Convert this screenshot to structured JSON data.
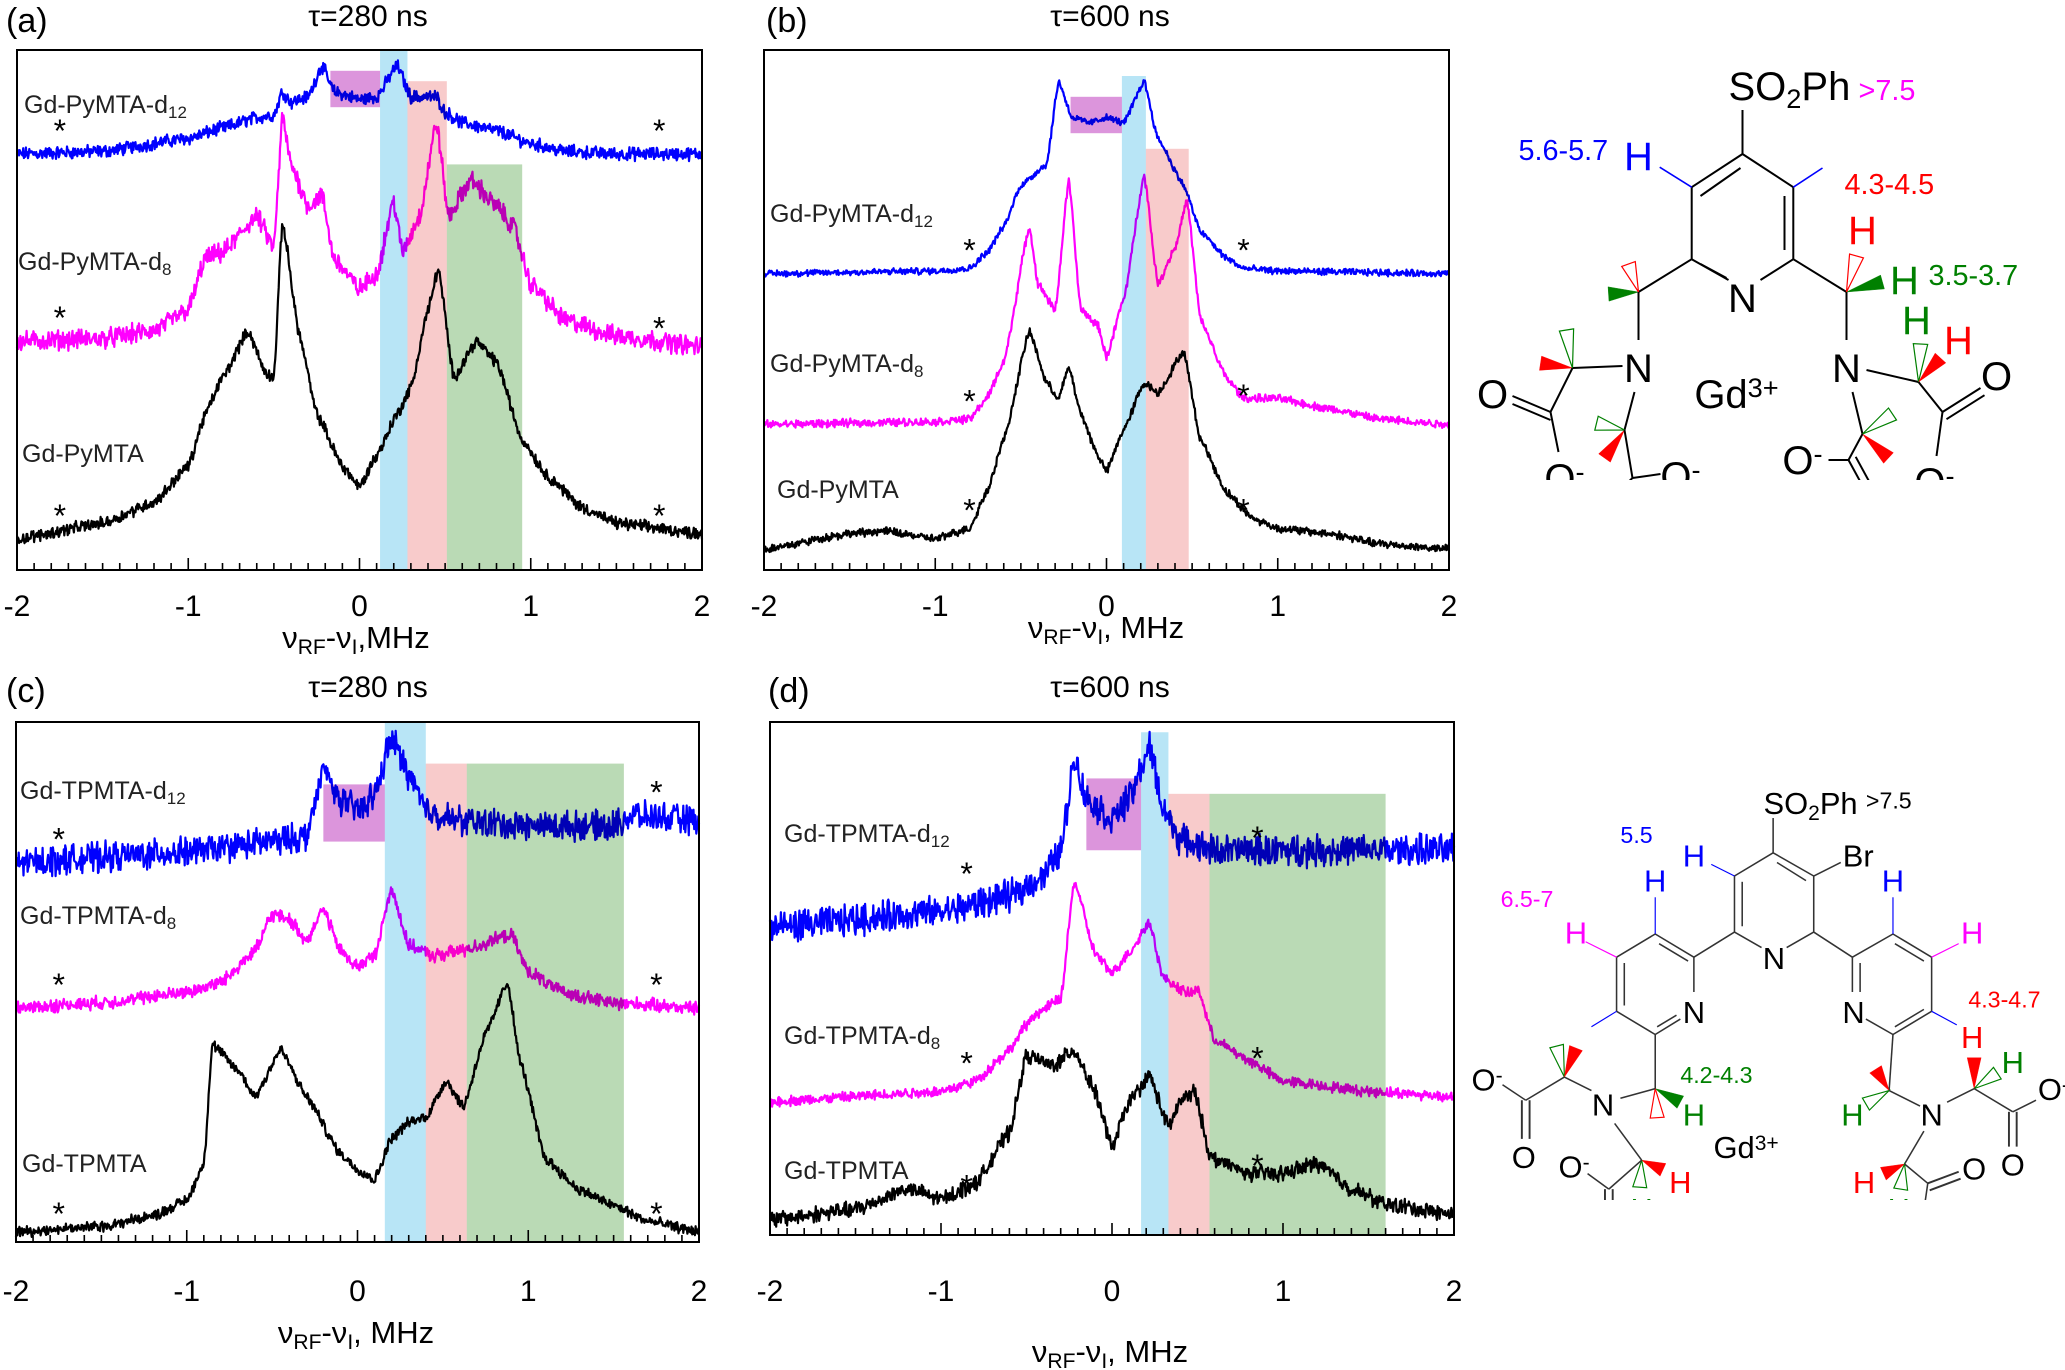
{
  "chart_data": [
    {
      "type": "line",
      "panel_label": "(a)",
      "title": "τ=280 ns",
      "xlabel_parts": [
        "ν",
        "RF",
        "-ν",
        "I",
        ",MHz"
      ],
      "xlim": [
        -2,
        2
      ],
      "xticks": [
        "-2",
        "-1",
        "0",
        "1",
        "2"
      ],
      "ylim": [
        0,
        100
      ],
      "yaxis": "arbitrary, stacked, no tick labels",
      "grid": false,
      "series": [
        {
          "name": "Gd-PyMTA-d",
          "name_sub": "12",
          "color": "#0000ff",
          "x": [
            -2,
            -1.5,
            -1,
            -0.8,
            -0.6,
            -0.5,
            -0.45,
            -0.4,
            -0.3,
            -0.22,
            -0.15,
            0,
            0.1,
            0.22,
            0.3,
            0.45,
            0.5,
            0.6,
            0.8,
            1.0,
            1.2,
            1.5,
            2
          ],
          "y": [
            80,
            80.5,
            83,
            85,
            87,
            87.5,
            92,
            90,
            91,
            97,
            92,
            90.5,
            91,
            97,
            91,
            91,
            88,
            86,
            84.5,
            82,
            80.5,
            80,
            80
          ]
        },
        {
          "name": "Gd-PyMTA-d",
          "name_sub": "8",
          "color": "#ff00ff",
          "x": [
            -2,
            -1.5,
            -1.2,
            -1,
            -0.9,
            -0.8,
            -0.6,
            -0.5,
            -0.45,
            -0.4,
            -0.3,
            -0.22,
            -0.15,
            0,
            0.1,
            0.2,
            0.25,
            0.35,
            0.45,
            0.52,
            0.65,
            0.8,
            0.9,
            1.0,
            1.2,
            1.5,
            2
          ],
          "y": [
            44,
            44.5,
            46,
            50,
            60,
            61,
            68,
            62,
            87,
            78,
            70,
            72,
            60,
            54,
            57,
            71,
            61,
            68,
            86,
            68,
            75,
            70,
            66,
            55,
            48,
            45,
            43
          ]
        },
        {
          "name": "Gd-PyMTA",
          "name_sub": "",
          "color": "#000000",
          "x": [
            -2,
            -1.5,
            -1.2,
            -1,
            -0.9,
            -0.8,
            -0.65,
            -0.55,
            -0.5,
            -0.45,
            -0.35,
            -0.25,
            -0.1,
            0,
            0.1,
            0.22,
            0.3,
            0.4,
            0.46,
            0.55,
            0.68,
            0.8,
            0.95,
            1.1,
            1.3,
            1.5,
            2
          ],
          "y": [
            6,
            9,
            13,
            20,
            30,
            37,
            46,
            38,
            37,
            67,
            45,
            30,
            20,
            16,
            22,
            30,
            35,
            50,
            58,
            37,
            44,
            40,
            25,
            18,
            12,
            9,
            7
          ]
        }
      ],
      "shaded_regions": [
        {
          "x": [
            -0.17,
            0.12
          ],
          "y": [
            89,
            96
          ],
          "color": "#d98ad9"
        },
        {
          "x": [
            0.12,
            0.28
          ],
          "y": [
            0,
            100
          ],
          "color": "#b0e2f5"
        },
        {
          "x": [
            0.28,
            0.51
          ],
          "y": [
            0,
            94
          ],
          "color": "#f8c6c6"
        },
        {
          "x": [
            0.51,
            0.95
          ],
          "y": [
            0,
            78
          ],
          "color": "#b3d6ad"
        }
      ],
      "annotations": [
        {
          "text": "*",
          "x": -1.75,
          "y": 85
        },
        {
          "text": "*",
          "x": 1.75,
          "y": 85
        },
        {
          "text": "*",
          "x": -1.75,
          "y": 49
        },
        {
          "text": "*",
          "x": 1.75,
          "y": 47
        },
        {
          "text": "*",
          "x": -1.75,
          "y": 11
        },
        {
          "text": "*",
          "x": 1.75,
          "y": 11
        }
      ]
    },
    {
      "type": "line",
      "panel_label": "(b)",
      "title": "τ=600 ns",
      "xlabel_parts": [
        "ν",
        "RF",
        "-ν",
        "I",
        ", MHz"
      ],
      "xlim": [
        -2,
        2
      ],
      "xticks": [
        "-2",
        "-1",
        "0",
        "1",
        "2"
      ],
      "ylim": [
        0,
        100
      ],
      "yaxis": "arbitrary, stacked, no tick labels",
      "grid": false,
      "series": [
        {
          "name": "Gd-PyMTA-d",
          "name_sub": "12",
          "color": "#0000ff",
          "x": [
            -2,
            -1,
            -0.8,
            -0.7,
            -0.6,
            -0.5,
            -0.35,
            -0.28,
            -0.2,
            -0.1,
            0,
            0.1,
            0.22,
            0.3,
            0.45,
            0.55,
            0.7,
            0.8,
            1.0,
            2
          ],
          "y": [
            57,
            57.5,
            58,
            61,
            66,
            74,
            78,
            94,
            87,
            86,
            87,
            86,
            94,
            83,
            74,
            65,
            60,
            58,
            57.5,
            57
          ]
        },
        {
          "name": "Gd-PyMTA-d",
          "name_sub": "8",
          "color": "#ff00ff",
          "x": [
            -2,
            -1,
            -0.8,
            -0.7,
            -0.6,
            -0.45,
            -0.4,
            -0.3,
            -0.22,
            -0.15,
            -0.05,
            0,
            0.1,
            0.22,
            0.3,
            0.4,
            0.47,
            0.55,
            0.7,
            0.8,
            1.0,
            1.3,
            1.6,
            2
          ],
          "y": [
            28,
            28.5,
            29,
            33,
            40,
            66,
            55,
            50,
            75,
            50,
            47,
            41,
            52,
            76,
            55,
            62,
            71,
            48,
            37,
            33,
            33,
            31,
            29,
            28
          ]
        },
        {
          "name": "Gd-PyMTA",
          "name_sub": "",
          "color": "#000000",
          "x": [
            -2,
            -1.5,
            -1.3,
            -1,
            -0.8,
            -0.7,
            -0.6,
            -0.45,
            -0.35,
            -0.28,
            -0.22,
            -0.15,
            -0.05,
            0,
            0.1,
            0.22,
            0.3,
            0.45,
            0.55,
            0.7,
            0.85,
            1.0,
            1.3,
            1.6,
            2
          ],
          "y": [
            4,
            7,
            7.5,
            6,
            8,
            15,
            25,
            46,
            36,
            33,
            39,
            30,
            22,
            19,
            27,
            36,
            34,
            42,
            25,
            15,
            10,
            8,
            7,
            5,
            4
          ]
        }
      ],
      "shaded_regions": [
        {
          "x": [
            -0.21,
            0.09
          ],
          "y": [
            84,
            91
          ],
          "color": "#d98ad9"
        },
        {
          "x": [
            0.09,
            0.23
          ],
          "y": [
            0,
            95
          ],
          "color": "#b0e2f5"
        },
        {
          "x": [
            0.23,
            0.48
          ],
          "y": [
            0,
            81
          ],
          "color": "#f8c6c6"
        }
      ],
      "annotations": [
        {
          "text": "*",
          "x": -0.8,
          "y": 62
        },
        {
          "text": "*",
          "x": 0.8,
          "y": 62
        },
        {
          "text": "*",
          "x": -0.8,
          "y": 33
        },
        {
          "text": "*",
          "x": 0.8,
          "y": 34
        },
        {
          "text": "*",
          "x": -0.8,
          "y": 12
        },
        {
          "text": "*",
          "x": 0.8,
          "y": 12
        }
      ]
    },
    {
      "type": "line",
      "panel_label": "(c)",
      "title": "τ=280 ns",
      "xlabel_parts": [
        "ν",
        "RF",
        "-ν",
        "I",
        ", MHz"
      ],
      "xlim": [
        -2,
        2
      ],
      "xticks": [
        "-2",
        "-1",
        "0",
        "1",
        "2"
      ],
      "ylim": [
        0,
        100
      ],
      "yaxis": "arbitrary, stacked, no tick labels",
      "grid": false,
      "series": [
        {
          "name": "Gd-TPMTA-d",
          "name_sub": "12",
          "color": "#0000ff",
          "x": [
            -2,
            -1.5,
            -1,
            -0.5,
            -0.3,
            -0.25,
            -0.2,
            -0.1,
            0,
            0.1,
            0.2,
            0.3,
            0.4,
            0.6,
            1,
            1.5,
            1.6,
            2
          ],
          "y": [
            73,
            74,
            75,
            77,
            78,
            84,
            91,
            85,
            83,
            86,
            97,
            90,
            83,
            81,
            80,
            80,
            82,
            81
          ]
        },
        {
          "name": "Gd-TPMTA-d",
          "name_sub": "8",
          "color": "#ff00ff",
          "x": [
            -2,
            -1.5,
            -1,
            -0.8,
            -0.6,
            -0.5,
            -0.4,
            -0.3,
            -0.2,
            -0.1,
            0,
            0.1,
            0.2,
            0.3,
            0.45,
            0.6,
            0.9,
            1.0,
            1.2,
            1.5,
            2
          ],
          "y": [
            45,
            46,
            48,
            50,
            56,
            63,
            62,
            58,
            64,
            56,
            53,
            55,
            68,
            57,
            55,
            56,
            59,
            52,
            48,
            46,
            45
          ]
        },
        {
          "name": "Gd-TPMTA",
          "name_sub": "",
          "color": "#000000",
          "x": [
            -2,
            -1.5,
            -1.2,
            -1,
            -0.9,
            -0.85,
            -0.7,
            -0.6,
            -0.45,
            -0.3,
            -0.1,
            0,
            0.1,
            0.2,
            0.3,
            0.4,
            0.52,
            0.62,
            0.75,
            0.88,
            0.95,
            1.1,
            1.3,
            1.5,
            1.7,
            2
          ],
          "y": [
            2,
            3,
            5,
            8,
            15,
            38,
            33,
            28,
            37,
            28,
            17,
            14,
            12,
            20,
            23,
            24,
            31,
            26,
            40,
            50,
            35,
            16,
            10,
            7,
            4,
            2
          ]
        }
      ],
      "shaded_regions": [
        {
          "x": [
            -0.2,
            0.16
          ],
          "y": [
            77,
            88
          ],
          "color": "#d98ad9"
        },
        {
          "x": [
            0.16,
            0.4
          ],
          "y": [
            0,
            100
          ],
          "color": "#b0e2f5"
        },
        {
          "x": [
            0.4,
            0.64
          ],
          "y": [
            0,
            92
          ],
          "color": "#f8c6c6"
        },
        {
          "x": [
            0.64,
            1.56
          ],
          "y": [
            0,
            92
          ],
          "color": "#b3d6ad"
        }
      ],
      "annotations": [
        {
          "text": "*",
          "x": -1.75,
          "y": 78
        },
        {
          "text": "*",
          "x": 1.75,
          "y": 87
        },
        {
          "text": "*",
          "x": -1.75,
          "y": 50
        },
        {
          "text": "*",
          "x": 1.75,
          "y": 50
        },
        {
          "text": "*",
          "x": -1.75,
          "y": 6
        },
        {
          "text": "*",
          "x": 1.75,
          "y": 6
        }
      ]
    },
    {
      "type": "line",
      "panel_label": "(d)",
      "title": "τ=600 ns",
      "xlabel_parts": [
        "ν",
        "RF",
        "-ν",
        "I",
        ", MHz"
      ],
      "xlim": [
        -2,
        2
      ],
      "xticks": [
        "-2",
        "-1",
        "0",
        "1",
        "2"
      ],
      "ylim": [
        0,
        100
      ],
      "yaxis": "arbitrary, stacked, no tick labels",
      "grid": false,
      "series": [
        {
          "name": "Gd-TPMTA-d",
          "name_sub": "12",
          "color": "#0000ff",
          "x": [
            -2,
            -1,
            -0.6,
            -0.4,
            -0.3,
            -0.22,
            -0.15,
            0,
            0.1,
            0.22,
            0.3,
            0.4,
            0.6,
            1,
            1.5,
            2
          ],
          "y": [
            60,
            63,
            66,
            70,
            75,
            93,
            85,
            81,
            85,
            95,
            83,
            77,
            75,
            75,
            75,
            75
          ]
        },
        {
          "name": "Gd-TPMTA-d",
          "name_sub": "8",
          "color": "#ff00ff",
          "x": [
            -2,
            -1,
            -0.8,
            -0.6,
            -0.5,
            -0.45,
            -0.3,
            -0.22,
            -0.1,
            0,
            0.1,
            0.22,
            0.3,
            0.45,
            0.5,
            0.6,
            0.8,
            1.0,
            1.5,
            2
          ],
          "y": [
            26,
            28,
            30,
            36,
            41,
            43,
            46,
            69,
            55,
            51,
            55,
            61,
            50,
            47,
            48,
            38,
            34,
            30,
            28,
            27
          ]
        },
        {
          "name": "Gd-TPMTA",
          "name_sub": "",
          "color": "#000000",
          "x": [
            -2,
            -1.5,
            -1.2,
            -1,
            -0.8,
            -0.6,
            -0.5,
            -0.35,
            -0.22,
            -0.1,
            0,
            0.1,
            0.22,
            0.33,
            0.4,
            0.48,
            0.58,
            0.8,
            1.0,
            1.2,
            1.4,
            1.6,
            2
          ],
          "y": [
            3,
            5,
            9,
            7,
            10,
            20,
            35,
            33,
            36,
            28,
            17,
            26,
            31,
            21,
            26,
            28,
            15,
            12,
            12,
            14,
            9,
            6,
            4
          ]
        }
      ],
      "shaded_regions": [
        {
          "x": [
            -0.15,
            0.17
          ],
          "y": [
            75,
            89
          ],
          "color": "#d98ad9"
        },
        {
          "x": [
            0.17,
            0.33
          ],
          "y": [
            0,
            98
          ],
          "color": "#b0e2f5"
        },
        {
          "x": [
            0.33,
            0.57
          ],
          "y": [
            0,
            86
          ],
          "color": "#f8c6c6"
        },
        {
          "x": [
            0.57,
            1.6
          ],
          "y": [
            0,
            86
          ],
          "color": "#b3d6ad"
        }
      ],
      "annotations": [
        {
          "text": "*",
          "x": -0.85,
          "y": 71
        },
        {
          "text": "*",
          "x": 0.85,
          "y": 78
        },
        {
          "text": "*",
          "x": -0.85,
          "y": 34
        },
        {
          "text": "*",
          "x": 0.85,
          "y": 35
        },
        {
          "text": "*",
          "x": -0.85,
          "y": 10
        },
        {
          "text": "*",
          "x": 0.85,
          "y": 14
        }
      ]
    }
  ],
  "structures": [
    {
      "substituent": [
        "SO",
        "2",
        "Ph"
      ],
      "shift_aryl": ">7.5",
      "shift_aryl_color": "#ff00ff",
      "shift_blue": "5.6-5.7",
      "shift_red": "4.3-4.5",
      "shift_green": "3.5-3.7",
      "metal": [
        "Gd",
        "3+"
      ]
    },
    {
      "substituent": [
        "SO",
        "2",
        "Ph"
      ],
      "shift_aryl": ">7.5",
      "shift_aryl_color": "#000000",
      "shift_blue": "5.5",
      "shift_magenta": "6.5-7",
      "shift_red": "4.3-4.7",
      "shift_green": "4.2-4.3",
      "bromo": "Br",
      "metal": [
        "Gd",
        "3+"
      ]
    }
  ],
  "atoms": {
    "H": "H",
    "N": "N",
    "O": "O",
    "minus": "-"
  },
  "colors": {
    "blue": "#0000ff",
    "magenta": "#ff00ff",
    "red": "#ff0000",
    "green": "#008000"
  }
}
